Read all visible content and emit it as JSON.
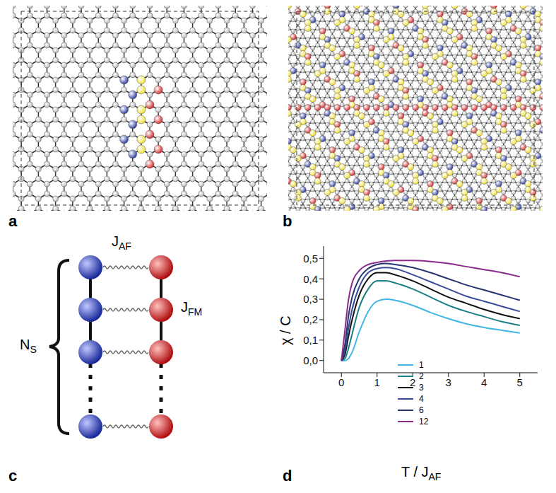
{
  "panels": {
    "a": {
      "label": "a"
    },
    "b": {
      "label": "b"
    },
    "c": {
      "label": "c",
      "coupling_af": {
        "text": "J",
        "sub": "AF"
      },
      "coupling_fm": {
        "text": "J",
        "sub": "FM"
      },
      "chain_length": {
        "text": "N",
        "sub": "S"
      }
    },
    "d": {
      "label": "d"
    }
  },
  "chart_data": {
    "type": "line",
    "x_label": {
      "text": "T / J",
      "sub": "AF"
    },
    "y_label": "χ / C",
    "x": [
      0,
      0.1,
      0.2,
      0.3,
      0.5,
      0.75,
      1,
      1.25,
      1.5,
      2,
      2.5,
      3,
      3.5,
      4,
      4.5,
      5
    ],
    "series": [
      {
        "name": "1",
        "color": "#41b6e6",
        "values": [
          0,
          0,
          0.01,
          0.04,
          0.14,
          0.24,
          0.29,
          0.3,
          0.295,
          0.27,
          0.235,
          0.205,
          0.18,
          0.162,
          0.148,
          0.135
        ]
      },
      {
        "name": "2",
        "color": "#1b7f87",
        "values": [
          0,
          0.01,
          0.06,
          0.13,
          0.26,
          0.35,
          0.39,
          0.39,
          0.38,
          0.35,
          0.31,
          0.27,
          0.24,
          0.215,
          0.19,
          0.172
        ]
      },
      {
        "name": "3",
        "color": "#111111",
        "values": [
          0,
          0.03,
          0.12,
          0.2,
          0.32,
          0.4,
          0.43,
          0.43,
          0.42,
          0.39,
          0.35,
          0.31,
          0.28,
          0.25,
          0.225,
          0.205
        ]
      },
      {
        "name": "4",
        "color": "#3a4a9a",
        "values": [
          0,
          0.05,
          0.16,
          0.25,
          0.36,
          0.43,
          0.45,
          0.455,
          0.45,
          0.42,
          0.385,
          0.35,
          0.315,
          0.29,
          0.265,
          0.24
        ]
      },
      {
        "name": "6",
        "color": "#283570",
        "values": [
          0,
          0.08,
          0.22,
          0.31,
          0.4,
          0.45,
          0.47,
          0.475,
          0.47,
          0.455,
          0.43,
          0.4,
          0.37,
          0.345,
          0.32,
          0.295
        ]
      },
      {
        "name": "12",
        "color": "#8a2a8a",
        "values": [
          0,
          0.15,
          0.3,
          0.38,
          0.44,
          0.47,
          0.48,
          0.487,
          0.49,
          0.49,
          0.485,
          0.475,
          0.46,
          0.445,
          0.43,
          0.41
        ]
      }
    ],
    "xlim": [
      -0.5,
      5.5
    ],
    "xticks": [
      0,
      1,
      2,
      3,
      4,
      5
    ],
    "ylim": [
      -0.06,
      0.56
    ],
    "yticks": [
      {
        "value": 0,
        "label": "0,0"
      },
      {
        "value": 0.1,
        "label": "0,1"
      },
      {
        "value": 0.2,
        "label": "0,2"
      },
      {
        "value": 0.3,
        "label": "0,3"
      },
      {
        "value": 0.4,
        "label": "0,4"
      },
      {
        "value": 0.5,
        "label": "0,5"
      }
    ],
    "legend": "lower center",
    "grid": false
  }
}
